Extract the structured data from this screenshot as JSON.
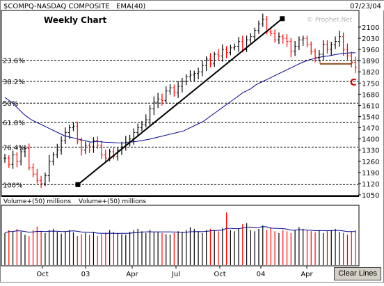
{
  "header": {
    "symbol": "$COMPQ-NASDAQ COMPOSITE",
    "indicator": "EMA(40)",
    "date": "07/23/04"
  },
  "chart_title": "Weekly Chart",
  "watermark": "© Prophet.Net",
  "fib_labels": [
    "23.6%",
    "38.2%",
    "50%",
    "61.8%",
    "76.4%",
    "100%"
  ],
  "annotation_c": "C",
  "volume_labels": [
    "Volume+(50) millions",
    "Volume+(50) millions"
  ],
  "clear_button": "Clear Lines",
  "chart_data": [
    {
      "type": "line",
      "subtype": "ohlc-bars",
      "title": "$COMPQ-NASDAQ COMPOSITE Weekly Chart",
      "series": [
        {
          "name": "$COMPQ-NASDAQ COMPOSITE",
          "type": "price-bars",
          "close_approx": [
            1280,
            1240,
            1300,
            1260,
            1320,
            1340,
            1220,
            1180,
            1140,
            1120,
            1170,
            1260,
            1300,
            1330,
            1390,
            1440,
            1470,
            1480,
            1390,
            1330,
            1360,
            1350,
            1390,
            1360,
            1300,
            1280,
            1320,
            1290,
            1330,
            1350,
            1380,
            1400,
            1440,
            1470,
            1490,
            1520,
            1590,
            1630,
            1650,
            1640,
            1700,
            1720,
            1690,
            1730,
            1760,
            1790,
            1800,
            1810,
            1820,
            1860,
            1900,
            1870,
            1930,
            1920,
            1960,
            1940,
            1970,
            1980,
            2010,
            1960,
            2020,
            2040,
            2080,
            2120,
            2150,
            2070,
            2060,
            2020,
            2040,
            2030,
            2010,
            1950,
            1980,
            2020,
            2030,
            1990,
            1950,
            1910,
            1930,
            1990,
            1960,
            1990,
            2010,
            2040,
            1960,
            1920,
            1880,
            1850
          ]
        },
        {
          "name": "EMA(40)",
          "type": "line",
          "values_approx": [
            1660,
            1630,
            1590,
            1550,
            1520,
            1500,
            1480,
            1460,
            1440,
            1420,
            1410,
            1400,
            1390,
            1380,
            1385,
            1380,
            1378,
            1376,
            1375,
            1380,
            1385,
            1392,
            1400,
            1410,
            1420,
            1430,
            1440,
            1450,
            1470,
            1490,
            1510,
            1540,
            1570,
            1600,
            1630,
            1660,
            1690,
            1710,
            1740,
            1760,
            1780,
            1800,
            1820,
            1840,
            1860,
            1880,
            1895,
            1905,
            1915,
            1920,
            1928,
            1935,
            1938,
            1940
          ]
        }
      ],
      "x_tick_labels": [
        "Oct",
        "03",
        "Apr",
        "Jul",
        "Oct",
        "04",
        "Apr"
      ],
      "ylim": [
        1050,
        2200
      ],
      "y_ticks": [
        2100,
        2030,
        1960,
        1890,
        1820,
        1750,
        1680,
        1610,
        1540,
        1470,
        1400,
        1330,
        1260,
        1190,
        1120,
        1050
      ],
      "fibonacci_levels": [
        {
          "label": "23.6%",
          "value": 1893
        },
        {
          "label": "38.2%",
          "value": 1760
        },
        {
          "label": "50%",
          "value": 1624
        },
        {
          "label": "61.8%",
          "value": 1503
        },
        {
          "label": "76.4%",
          "value": 1349
        },
        {
          "label": "100%",
          "value": 1114
        }
      ],
      "trendline": {
        "from": {
          "x": "Oct 2002",
          "y": 1114
        },
        "to": {
          "x": "Jan 2004",
          "y": 2153
        }
      },
      "support_line_value": 1870,
      "annotations": [
        "C"
      ],
      "grid": false,
      "colors": {
        "up": "#000000",
        "down": "#ff0000",
        "ema": "#00008b",
        "support": "#8b4513",
        "axis_bg": "#ffffff"
      }
    },
    {
      "type": "bar",
      "title": "Volume+(50) millions",
      "series": [
        {
          "name": "Volume+(50) millions",
          "values_relative": [
            0.55,
            0.6,
            0.58,
            0.62,
            0.57,
            0.52,
            0.5,
            0.6,
            0.66,
            0.58,
            0.55,
            0.6,
            0.62,
            0.57,
            0.54,
            0.58,
            0.6,
            0.56,
            0.5,
            0.53,
            0.55,
            0.52,
            0.57,
            0.5,
            0.53,
            0.55,
            0.6,
            0.57,
            0.55,
            0.53,
            0.52,
            0.57,
            0.6,
            0.62,
            0.58,
            0.55,
            0.6,
            0.56,
            0.57,
            0.55,
            0.53,
            0.52,
            0.55,
            0.58,
            0.57,
            0.6,
            0.65,
            0.62,
            0.58,
            0.55,
            0.6,
            0.62,
            0.6,
            0.58,
            0.63,
            0.9,
            0.6,
            0.58,
            0.62,
            0.7,
            0.72,
            0.6,
            0.58,
            0.62,
            0.68,
            0.6,
            0.65,
            0.58,
            0.55,
            0.6,
            0.58,
            0.55,
            0.6,
            0.65,
            0.62,
            0.6,
            0.58,
            0.56,
            0.6,
            0.55,
            0.58,
            0.6,
            0.62,
            0.57,
            0.55,
            0.52,
            0.58,
            0.6
          ]
        }
      ],
      "moving_average": "50"
    }
  ]
}
